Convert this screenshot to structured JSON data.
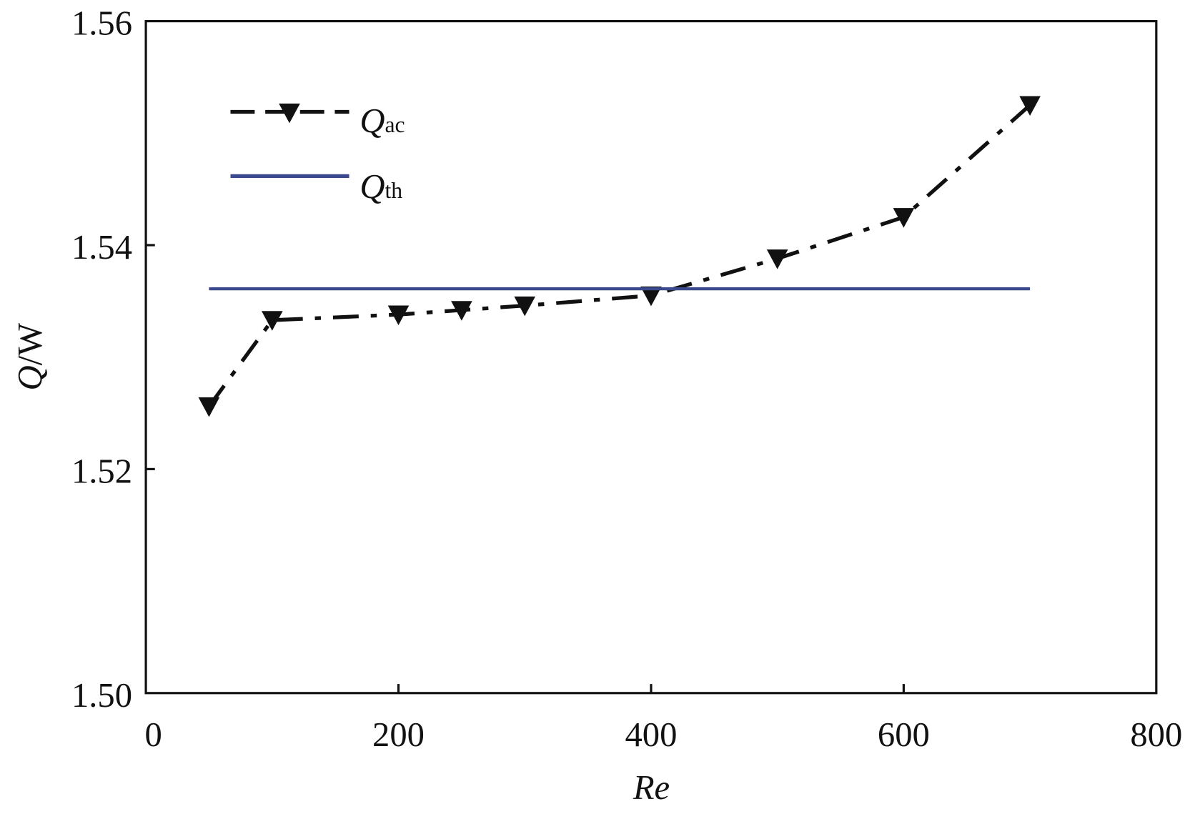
{
  "chart_data": {
    "type": "line",
    "title": "",
    "xlabel": "Re",
    "ylabel": "Q/W",
    "xlim": [
      0,
      800
    ],
    "ylim": [
      1.5,
      1.56
    ],
    "xticks": [
      "0",
      "200",
      "400",
      "600",
      "800"
    ],
    "xtick_values": [
      0,
      200,
      400,
      600,
      800
    ],
    "yticks": [
      "1.50",
      "1.52",
      "1.54",
      "1.56"
    ],
    "ytick_values": [
      1.5,
      1.52,
      1.54,
      1.56
    ],
    "grid": false,
    "legend_position": "top-left",
    "series": [
      {
        "name": "Q_ac",
        "label_main": "Q",
        "label_sub": "ac",
        "color": "#111111",
        "style": "dash-dot",
        "marker": "triangle-down",
        "x": [
          50,
          100,
          200,
          250,
          300,
          400,
          500,
          600,
          700
        ],
        "y": [
          1.5256,
          1.5333,
          1.5338,
          1.5342,
          1.5346,
          1.5355,
          1.5388,
          1.5425,
          1.5525
        ]
      },
      {
        "name": "Q_th",
        "label_main": "Q",
        "label_sub": "th",
        "color": "#3b4a8f",
        "style": "solid",
        "marker": "none",
        "x": [
          50,
          700
        ],
        "y": [
          1.5361,
          1.5361
        ]
      }
    ]
  }
}
